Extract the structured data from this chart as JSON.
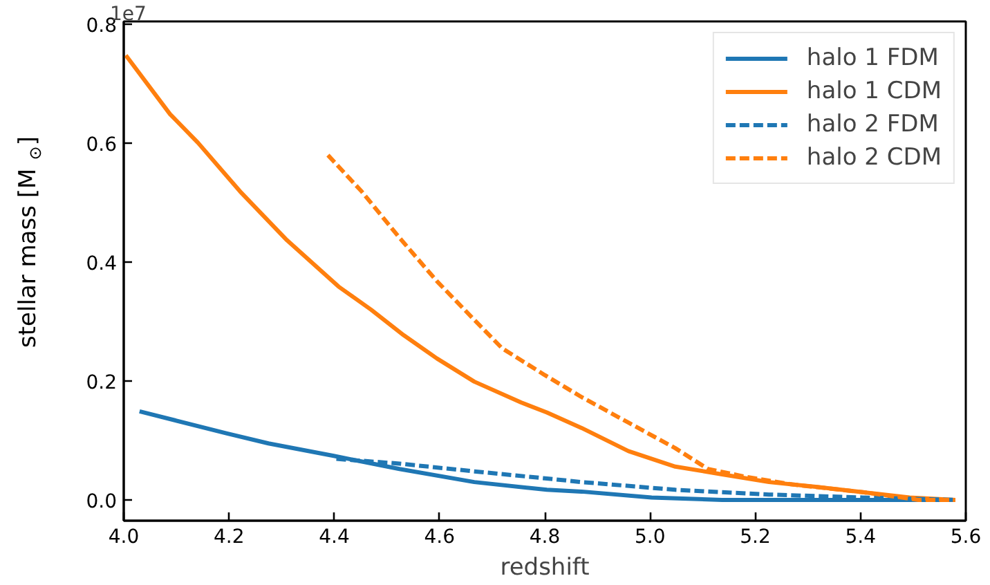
{
  "chart_data": {
    "type": "line",
    "xlabel": "redshift",
    "ylabel": "stellar mass [M$_{⊙}$]",
    "annotations": [
      "1e7"
    ],
    "xlim": [
      4.0,
      5.6
    ],
    "xticks": [
      {
        "value": 4.0,
        "label": "4.0"
      },
      4.2,
      4.4,
      4.6,
      4.8,
      {
        "value": 5.0,
        "label": "5.0"
      },
      5.2,
      5.4,
      5.6
    ],
    "ylim": [
      -0.035,
      0.805
    ],
    "yticks": [
      {
        "value": 0,
        "label": "0.0"
      },
      0.2,
      0.4,
      0.6,
      0.8
    ],
    "legend": "top right",
    "grid": false,
    "series": [
      {
        "name": "halo 1 FDM",
        "color": "#1f77b4",
        "line_style": "solid",
        "x": [
          4.03,
          4.097,
          4.195,
          4.275,
          4.399,
          4.524,
          4.666,
          4.804,
          4.87,
          5.003,
          5.137,
          5.58
        ],
        "values": [
          0.149,
          0.134,
          0.112,
          0.095,
          0.074,
          0.052,
          0.03,
          0.017,
          0.014,
          0.004,
          0.0,
          0.0
        ]
      },
      {
        "name": "halo 1 CDM",
        "color": "#ff7f0e",
        "line_style": "solid",
        "x": [
          4.004,
          4.088,
          4.141,
          4.221,
          4.31,
          4.408,
          4.47,
          4.532,
          4.595,
          4.666,
          4.755,
          4.804,
          4.87,
          4.959,
          5.048,
          5.137,
          5.226,
          5.315,
          5.404,
          5.493,
          5.58
        ],
        "values": [
          0.748,
          0.649,
          0.601,
          0.519,
          0.437,
          0.359,
          0.32,
          0.277,
          0.238,
          0.199,
          0.164,
          0.147,
          0.121,
          0.082,
          0.056,
          0.043,
          0.03,
          0.022,
          0.013,
          0.004,
          0.0
        ]
      },
      {
        "name": "halo 2 FDM",
        "color": "#1f77b4",
        "line_style": "dashed",
        "x": [
          4.404,
          4.524,
          4.666,
          4.804,
          4.87,
          5.048,
          5.226,
          5.404,
          5.58
        ],
        "values": [
          0.069,
          0.061,
          0.048,
          0.036,
          0.03,
          0.017,
          0.009,
          0.004,
          0.0
        ]
      },
      {
        "name": "halo 2 CDM",
        "color": "#ff7f0e",
        "line_style": "dashed",
        "x": [
          4.388,
          4.452,
          4.524,
          4.595,
          4.666,
          4.719,
          4.8,
          4.87,
          4.959,
          5.048,
          5.11,
          5.181,
          5.27,
          5.404,
          5.51,
          5.58
        ],
        "values": [
          0.58,
          0.519,
          0.441,
          0.368,
          0.303,
          0.255,
          0.21,
          0.173,
          0.13,
          0.087,
          0.052,
          0.039,
          0.026,
          0.013,
          0.0,
          0.0
        ]
      }
    ]
  }
}
